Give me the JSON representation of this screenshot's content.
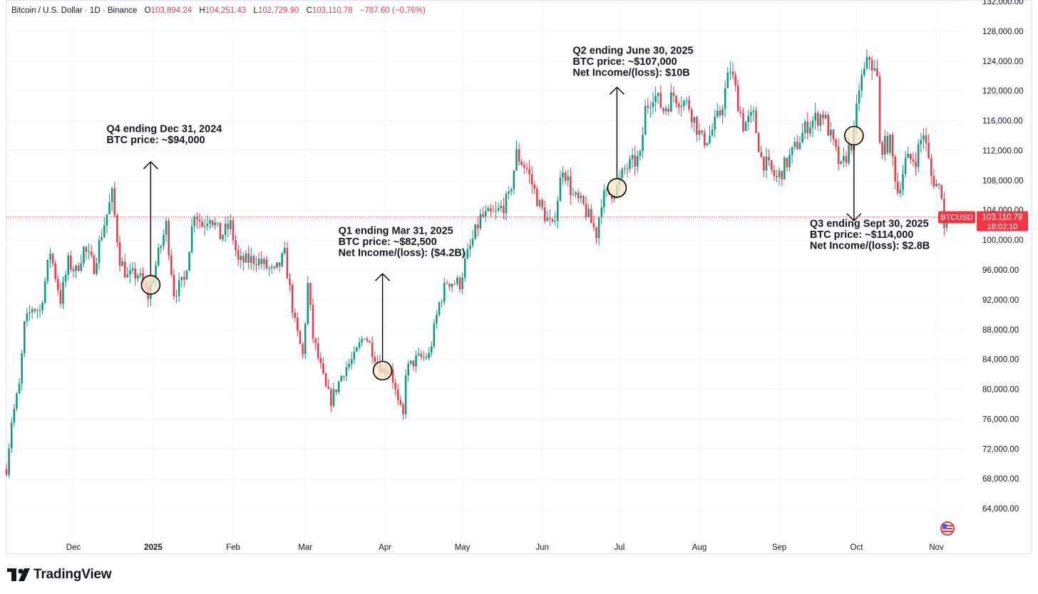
{
  "header": {
    "symbol": "Bitcoin / U.S. Dollar · 1D · Binance",
    "open_label": "O",
    "open": "103,894.24",
    "high_label": "H",
    "high": "104,251.43",
    "low_label": "L",
    "low": "102,729.90",
    "close_label": "C",
    "close": "103,110.78",
    "change": "−787.60 (−0.76%)"
  },
  "price_tag": {
    "ticker": "BTCUSD",
    "price": "103,110.78",
    "countdown": "18:02:10"
  },
  "footer": {
    "brand": "TradingView"
  },
  "colors": {
    "up": "#089981",
    "down": "#f23645",
    "grid": "#f0f3fa",
    "text": "#131722",
    "highlight": "#fbe6c4"
  },
  "chart_data": {
    "type": "candlestick",
    "interval": "1D",
    "x_range": [
      "2024-11-05",
      "2025-11-10"
    ],
    "ylim": [
      60000,
      132000
    ],
    "y_ticks": [
      "132,000.00",
      "128,000.00",
      "124,000.00",
      "120,000.00",
      "116,000.00",
      "112,000.00",
      "108,000.00",
      "104,000.00",
      "100,000.00",
      "96,000.00",
      "92,000.00",
      "88,000.00",
      "84,000.00",
      "80,000.00",
      "76,000.00",
      "72,000.00",
      "68,000.00",
      "64,000.00"
    ],
    "x_ticks": [
      {
        "label": "Dec",
        "date": "2024-12-01",
        "bold": false
      },
      {
        "label": "2025",
        "date": "2025-01-01",
        "bold": true
      },
      {
        "label": "Feb",
        "date": "2025-02-01",
        "bold": false
      },
      {
        "label": "Mar",
        "date": "2025-03-01",
        "bold": false
      },
      {
        "label": "Apr",
        "date": "2025-04-01",
        "bold": false
      },
      {
        "label": "May",
        "date": "2025-05-01",
        "bold": false
      },
      {
        "label": "Jun",
        "date": "2025-06-01",
        "bold": false
      },
      {
        "label": "Jul",
        "date": "2025-07-01",
        "bold": false
      },
      {
        "label": "Aug",
        "date": "2025-08-01",
        "bold": false
      },
      {
        "label": "Sep",
        "date": "2025-09-01",
        "bold": false
      },
      {
        "label": "Oct",
        "date": "2025-10-01",
        "bold": false
      },
      {
        "label": "Nov",
        "date": "2025-11-01",
        "bold": false
      }
    ],
    "close_path": [
      [
        "2024-11-05",
        69300
      ],
      [
        "2024-11-07",
        75800
      ],
      [
        "2024-11-10",
        80400
      ],
      [
        "2024-11-12",
        88500
      ],
      [
        "2024-11-15",
        91000
      ],
      [
        "2024-11-18",
        90500
      ],
      [
        "2024-11-22",
        98500
      ],
      [
        "2024-11-26",
        92000
      ],
      [
        "2024-11-29",
        97000
      ],
      [
        "2024-12-02",
        95800
      ],
      [
        "2024-12-05",
        98800
      ],
      [
        "2024-12-09",
        96500
      ],
      [
        "2024-12-12",
        101000
      ],
      [
        "2024-12-16",
        106000
      ],
      [
        "2024-12-19",
        97500
      ],
      [
        "2024-12-22",
        95000
      ],
      [
        "2024-12-26",
        95500
      ],
      [
        "2024-12-30",
        92500
      ],
      [
        "2025-01-03",
        98000
      ],
      [
        "2025-01-06",
        102000
      ],
      [
        "2025-01-09",
        93000
      ],
      [
        "2025-01-13",
        94500
      ],
      [
        "2025-01-17",
        104000
      ],
      [
        "2025-01-20",
        102000
      ],
      [
        "2025-01-23",
        103500
      ],
      [
        "2025-01-27",
        100500
      ],
      [
        "2025-01-31",
        102000
      ],
      [
        "2025-02-03",
        97000
      ],
      [
        "2025-02-10",
        97500
      ],
      [
        "2025-02-17",
        95500
      ],
      [
        "2025-02-21",
        98000
      ],
      [
        "2025-02-25",
        88700
      ],
      [
        "2025-02-28",
        84500
      ],
      [
        "2025-03-02",
        94000
      ],
      [
        "2025-03-04",
        87000
      ],
      [
        "2025-03-09",
        80000
      ],
      [
        "2025-03-11",
        78500
      ],
      [
        "2025-03-16",
        82600
      ],
      [
        "2025-03-20",
        84200
      ],
      [
        "2025-03-24",
        87500
      ],
      [
        "2025-03-28",
        84500
      ],
      [
        "2025-03-31",
        82500
      ],
      [
        "2025-04-03",
        83000
      ],
      [
        "2025-04-06",
        78000
      ],
      [
        "2025-04-08",
        76300
      ],
      [
        "2025-04-09",
        82500
      ],
      [
        "2025-04-13",
        84000
      ],
      [
        "2025-04-18",
        84500
      ],
      [
        "2025-04-22",
        91500
      ],
      [
        "2025-04-25",
        94500
      ],
      [
        "2025-04-30",
        94200
      ],
      [
        "2025-05-02",
        97000
      ],
      [
        "2025-05-08",
        103000
      ],
      [
        "2025-05-14",
        103500
      ],
      [
        "2025-05-19",
        105500
      ],
      [
        "2025-05-22",
        111500
      ],
      [
        "2025-05-26",
        109500
      ],
      [
        "2025-05-31",
        104600
      ],
      [
        "2025-06-05",
        101500
      ],
      [
        "2025-06-09",
        110000
      ],
      [
        "2025-06-13",
        105800
      ],
      [
        "2025-06-17",
        104500
      ],
      [
        "2025-06-22",
        100900
      ],
      [
        "2025-06-24",
        105500
      ],
      [
        "2025-06-30",
        107000
      ],
      [
        "2025-07-03",
        109500
      ],
      [
        "2025-07-09",
        111000
      ],
      [
        "2025-07-11",
        117500
      ],
      [
        "2025-07-14",
        119800
      ],
      [
        "2025-07-18",
        117500
      ],
      [
        "2025-07-22",
        119500
      ],
      [
        "2025-07-28",
        118000
      ],
      [
        "2025-08-02",
        113300
      ],
      [
        "2025-08-05",
        114000
      ],
      [
        "2025-08-09",
        117000
      ],
      [
        "2025-08-13",
        123000
      ],
      [
        "2025-08-18",
        115500
      ],
      [
        "2025-08-22",
        116500
      ],
      [
        "2025-08-25",
        111000
      ],
      [
        "2025-08-31",
        108200
      ],
      [
        "2025-09-05",
        111000
      ],
      [
        "2025-09-12",
        115500
      ],
      [
        "2025-09-18",
        117000
      ],
      [
        "2025-09-22",
        112700
      ],
      [
        "2025-09-25",
        109500
      ],
      [
        "2025-09-30",
        114000
      ],
      [
        "2025-10-02",
        120500
      ],
      [
        "2025-10-06",
        124500
      ],
      [
        "2025-10-09",
        121500
      ],
      [
        "2025-10-10",
        112500
      ],
      [
        "2025-10-14",
        113000
      ],
      [
        "2025-10-17",
        106500
      ],
      [
        "2025-10-20",
        110500
      ],
      [
        "2025-10-24",
        111000
      ],
      [
        "2025-10-27",
        114500
      ],
      [
        "2025-10-30",
        108500
      ],
      [
        "2025-11-03",
        106500
      ],
      [
        "2025-11-04",
        101500
      ],
      [
        "2025-11-05",
        103110
      ]
    ],
    "annotations": [
      {
        "lines": [
          "Q4 ending Dec 31, 2024",
          "BTC price: ~$94,000"
        ],
        "date": "2024-12-31",
        "price": 94000,
        "arrow": "up",
        "arrow_end_price": 110500,
        "text_price": 114500
      },
      {
        "lines": [
          "Q1 ending Mar 31, 2025",
          "BTC price: ~$82,500",
          "Net Income/(loss): ($4.2B)"
        ],
        "date": "2025-03-31",
        "price": 82500,
        "arrow": "up",
        "arrow_end_price": 95500,
        "text_price": 100800
      },
      {
        "lines": [
          "Q2 ending June 30, 2025",
          "BTC price: ~$107,000",
          "Net Income/(loss): $10B"
        ],
        "date": "2025-06-30",
        "price": 107000,
        "arrow": "up",
        "arrow_end_price": 120500,
        "text_price": 125000
      },
      {
        "lines": [
          "Q3 ending Sept 30, 2025",
          "BTC price: ~$114,000",
          "Net Income/(loss): $2.8B"
        ],
        "date": "2025-09-30",
        "price": 114000,
        "arrow": "down",
        "arrow_end_price": 102600,
        "text_price": 101800
      }
    ]
  }
}
